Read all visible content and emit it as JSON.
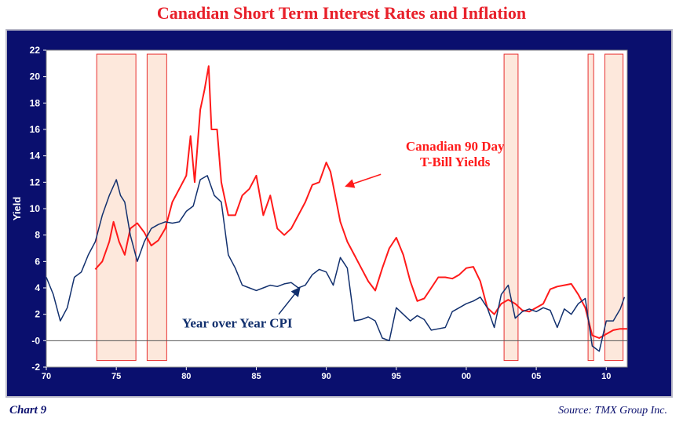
{
  "title": "Canadian Short Term Interest Rates and Inflation",
  "footer": {
    "chart_label": "Chart 9",
    "source": "Source: TMX Group Inc."
  },
  "colors": {
    "frame": "#0a0f6e",
    "tbill": "#ff1a1a",
    "cpi": "#12306e",
    "recession_fill": "#fde8dc",
    "recession_stroke": "#e83030",
    "title": "#e8202a"
  },
  "chart_data": {
    "type": "line",
    "title": "Canadian Short Term Interest Rates and Inflation",
    "xlabel": "",
    "ylabel": "Yield",
    "xlim": [
      1970,
      2011.5
    ],
    "ylim": [
      -2,
      22
    ],
    "x_ticks": [
      1970,
      1975,
      1980,
      1985,
      1990,
      1995,
      2000,
      2005,
      2010
    ],
    "x_tick_labels": [
      "70",
      "75",
      "80",
      "85",
      "90",
      "95",
      "00",
      "05",
      "10"
    ],
    "y_ticks": [
      -2,
      0,
      2,
      4,
      6,
      8,
      10,
      12,
      14,
      16,
      18,
      20,
      22
    ],
    "y_tick_labels": [
      "-2",
      "-0",
      "2",
      "4",
      "6",
      "8",
      "10",
      "12",
      "14",
      "16",
      "18",
      "20",
      "22"
    ],
    "grid": false,
    "recession_bands": [
      [
        1973.6,
        1976.4
      ],
      [
        1977.2,
        1978.6
      ],
      [
        2002.7,
        2003.7
      ],
      [
        2008.7,
        2009.1
      ],
      [
        2009.9,
        2011.2
      ]
    ],
    "annotations": [
      {
        "text_lines": [
          "Canadian 90 Day",
          "T-Bill Yields"
        ],
        "target": [
          1991.4,
          11.7
        ]
      },
      {
        "text_lines": [
          "Year over Year CPI"
        ],
        "target": [
          1988.1,
          4.0
        ]
      }
    ],
    "series": [
      {
        "name": "Canadian 90 Day T-Bill Yields",
        "x": [
          1973.5,
          1974.0,
          1974.5,
          1974.8,
          1975.2,
          1975.6,
          1976.0,
          1976.5,
          1977.0,
          1977.5,
          1978.0,
          1978.5,
          1979.0,
          1979.5,
          1980.0,
          1980.3,
          1980.6,
          1981.0,
          1981.3,
          1981.6,
          1981.8,
          1982.2,
          1982.5,
          1983.0,
          1983.5,
          1984.0,
          1984.5,
          1985.0,
          1985.5,
          1986.0,
          1986.5,
          1987.0,
          1987.5,
          1988.0,
          1988.5,
          1989.0,
          1989.5,
          1990.0,
          1990.3,
          1990.6,
          1991.0,
          1991.5,
          1992.0,
          1992.5,
          1993.0,
          1993.5,
          1994.0,
          1994.5,
          1995.0,
          1995.5,
          1996.0,
          1996.5,
          1997.0,
          1997.5,
          1998.0,
          1998.5,
          1999.0,
          1999.5,
          2000.0,
          2000.5,
          2001.0,
          2001.5,
          2002.0,
          2002.5,
          2003.0,
          2003.5,
          2004.0,
          2004.5,
          2005.0,
          2005.5,
          2006.0,
          2006.5,
          2007.0,
          2007.5,
          2008.0,
          2008.5,
          2009.0,
          2009.5,
          2010.0,
          2010.5,
          2011.0,
          2011.5
        ],
        "y": [
          5.4,
          6.0,
          7.5,
          9.0,
          7.5,
          6.5,
          8.5,
          8.9,
          8.2,
          7.2,
          7.6,
          8.5,
          10.5,
          11.5,
          12.5,
          15.5,
          12.0,
          17.5,
          19.0,
          20.8,
          16.0,
          16.0,
          12.0,
          9.5,
          9.5,
          11.0,
          11.5,
          12.5,
          9.5,
          11.0,
          8.5,
          8.0,
          8.5,
          9.5,
          10.5,
          11.8,
          12.0,
          13.5,
          12.8,
          11.2,
          9.0,
          7.5,
          6.5,
          5.5,
          4.5,
          3.8,
          5.5,
          7.0,
          7.8,
          6.5,
          4.5,
          3.0,
          3.2,
          4.0,
          4.8,
          4.8,
          4.7,
          5.0,
          5.5,
          5.6,
          4.5,
          2.5,
          2.0,
          2.8,
          3.1,
          2.8,
          2.3,
          2.2,
          2.5,
          2.8,
          3.9,
          4.1,
          4.2,
          4.3,
          3.5,
          2.5,
          0.4,
          0.2,
          0.5,
          0.8,
          0.9,
          0.9
        ]
      },
      {
        "name": "Year over Year CPI",
        "x": [
          1970.0,
          1970.5,
          1971.0,
          1971.5,
          1972.0,
          1972.5,
          1973.0,
          1973.5,
          1974.0,
          1974.5,
          1975.0,
          1975.3,
          1975.6,
          1976.0,
          1976.5,
          1977.0,
          1977.5,
          1978.0,
          1978.5,
          1979.0,
          1979.5,
          1980.0,
          1980.5,
          1981.0,
          1981.5,
          1982.0,
          1982.5,
          1983.0,
          1983.5,
          1984.0,
          1984.5,
          1985.0,
          1985.5,
          1986.0,
          1986.5,
          1987.0,
          1987.5,
          1988.0,
          1988.5,
          1989.0,
          1989.5,
          1990.0,
          1990.5,
          1991.0,
          1991.5,
          1992.0,
          1992.5,
          1993.0,
          1993.5,
          1994.0,
          1994.5,
          1995.0,
          1995.5,
          1996.0,
          1996.5,
          1997.0,
          1997.5,
          1998.0,
          1998.5,
          1999.0,
          1999.5,
          2000.0,
          2000.5,
          2001.0,
          2001.5,
          2002.0,
          2002.5,
          2003.0,
          2003.5,
          2004.0,
          2004.5,
          2005.0,
          2005.5,
          2006.0,
          2006.5,
          2007.0,
          2007.5,
          2008.0,
          2008.5,
          2009.0,
          2009.5,
          2010.0,
          2010.5,
          2011.0,
          2011.3
        ],
        "y": [
          4.8,
          3.5,
          1.5,
          2.5,
          4.8,
          5.2,
          6.5,
          7.5,
          9.5,
          11.0,
          12.2,
          11.0,
          10.5,
          8.0,
          6.0,
          7.5,
          8.5,
          8.8,
          9.0,
          8.9,
          9.0,
          9.8,
          10.2,
          12.2,
          12.5,
          11.0,
          10.5,
          6.5,
          5.5,
          4.2,
          4.0,
          3.8,
          4.0,
          4.2,
          4.1,
          4.3,
          4.4,
          4.0,
          4.2,
          5.0,
          5.4,
          5.2,
          4.2,
          6.3,
          5.5,
          1.5,
          1.6,
          1.8,
          1.5,
          0.2,
          0.0,
          2.5,
          2.0,
          1.5,
          1.9,
          1.6,
          0.8,
          0.9,
          1.0,
          2.2,
          2.5,
          2.8,
          3.0,
          3.3,
          2.5,
          1.0,
          3.5,
          4.2,
          1.7,
          2.2,
          2.4,
          2.2,
          2.5,
          2.3,
          1.0,
          2.4,
          2.0,
          2.8,
          3.2,
          -0.4,
          -0.8,
          1.5,
          1.5,
          2.4,
          3.3
        ]
      }
    ]
  }
}
